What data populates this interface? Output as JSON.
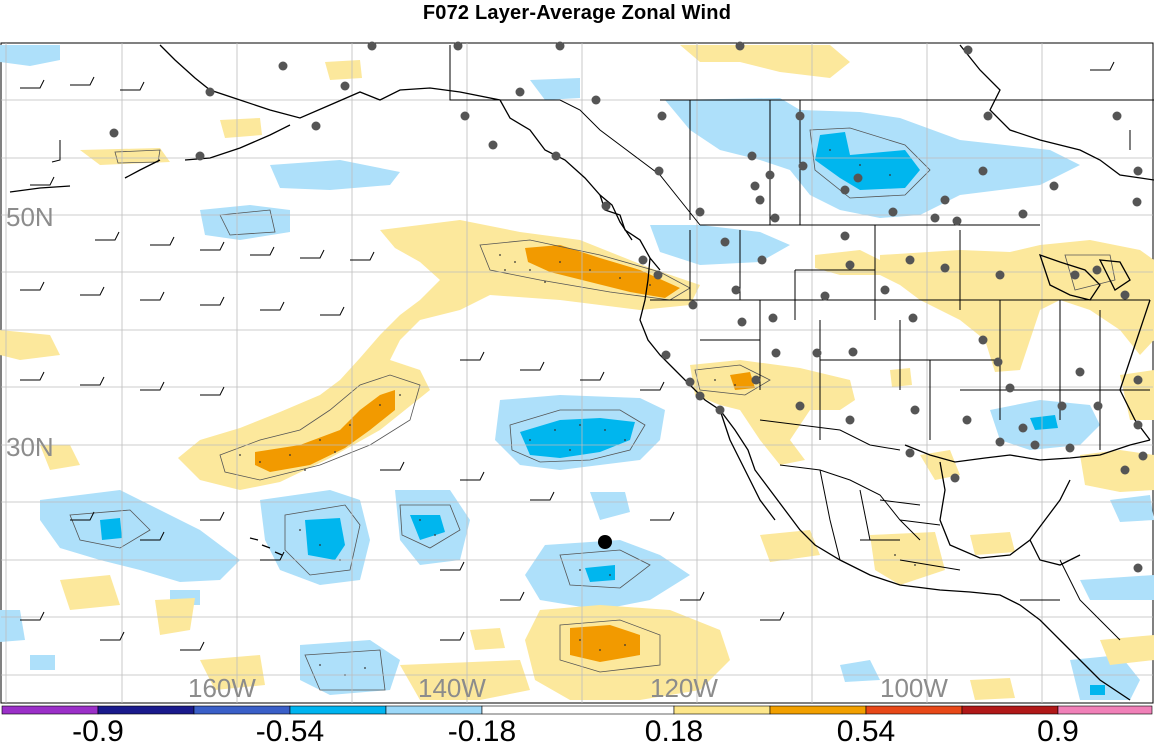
{
  "title": "F072 Layer-Average Zonal Wind",
  "map": {
    "lat_labels": [
      {
        "id": "lat-50n",
        "text": "50N"
      },
      {
        "id": "lat-30n",
        "text": "30N"
      }
    ],
    "lon_labels": [
      {
        "id": "lon-160w",
        "text": "160W"
      },
      {
        "id": "lon-140w",
        "text": "140W"
      },
      {
        "id": "lon-120w",
        "text": "120W"
      },
      {
        "id": "lon-100w",
        "text": "100W"
      }
    ]
  },
  "colorbar": {
    "labels": [
      "-0.9",
      "-0.54",
      "-0.18",
      "0.18",
      "0.54",
      "0.9"
    ],
    "colors": [
      "#9b30c8",
      "#1a1a8c",
      "#3a5fc8",
      "#00b4f0",
      "#9cd8f8",
      "#ffffff",
      "#fde68a",
      "#f2a000",
      "#e84818",
      "#b01818",
      "#f080b8"
    ]
  },
  "legend_colors": {
    "light_blue": "#aee0fa",
    "blue": "#00b6ee",
    "light_yellow": "#fce89c",
    "orange": "#f29a00",
    "land_point": "#555555",
    "grid": "#bdbdbd"
  }
}
